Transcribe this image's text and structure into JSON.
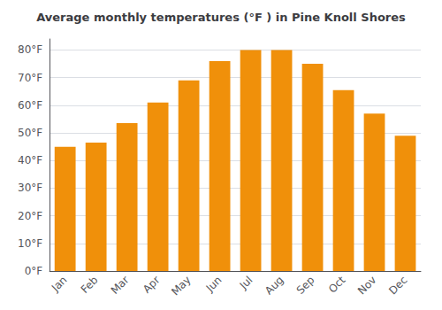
{
  "chart_data": {
    "type": "bar",
    "title": "Average monthly temperatures (°F ) in Pine Knoll Shores",
    "categories": [
      "Jan",
      "Feb",
      "Mar",
      "Apr",
      "May",
      "Jun",
      "Jul",
      "Aug",
      "Sep",
      "Oct",
      "Nov",
      "Dec"
    ],
    "values": [
      45,
      46.5,
      53.5,
      61,
      69,
      76,
      80,
      80,
      75,
      65.5,
      57,
      49
    ],
    "color": "#F0900A",
    "ylim": [
      0,
      84
    ],
    "yticks": [
      {
        "value": 0,
        "label": "0°F"
      },
      {
        "value": 10,
        "label": "10°F"
      },
      {
        "value": 20,
        "label": "20°F"
      },
      {
        "value": 30,
        "label": "30°F"
      },
      {
        "value": 40,
        "label": "40°F"
      },
      {
        "value": 50,
        "label": "50°F"
      },
      {
        "value": 60,
        "label": "60°F"
      },
      {
        "value": 70,
        "label": "70°F"
      },
      {
        "value": 80,
        "label": "80°F"
      }
    ],
    "grid": true
  }
}
